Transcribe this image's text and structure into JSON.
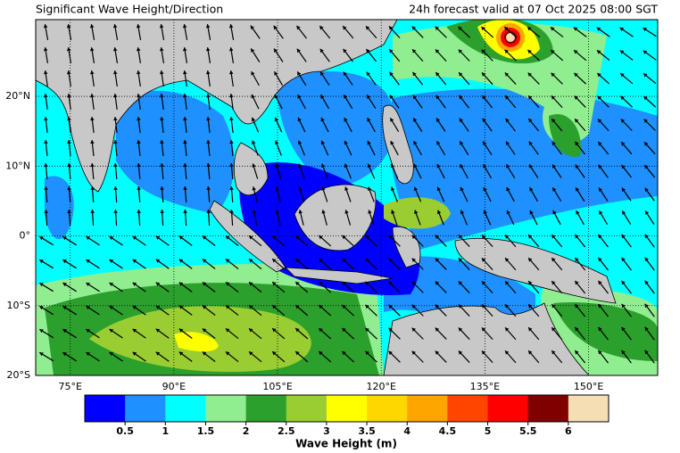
{
  "header": {
    "title": "Significant Wave Height/Direction",
    "valid": "24h forecast valid at 07 Oct 2025 08:00 SGT"
  },
  "map": {
    "xlim": [
      70,
      160
    ],
    "ylim": [
      -20,
      31
    ],
    "xticks": [
      {
        "value": 75,
        "label": "75°E"
      },
      {
        "value": 90,
        "label": "90°E"
      },
      {
        "value": 105,
        "label": "105°E"
      },
      {
        "value": 120,
        "label": "120°E"
      },
      {
        "value": 135,
        "label": "135°E"
      },
      {
        "value": 150,
        "label": "150°E"
      }
    ],
    "yticks": [
      {
        "value": -20,
        "label": "20°S"
      },
      {
        "value": -10,
        "label": "10°S"
      },
      {
        "value": 0,
        "label": "0°"
      },
      {
        "value": 10,
        "label": "10°N"
      },
      {
        "value": 20,
        "label": "20°N"
      }
    ],
    "grid": true
  },
  "colorbar": {
    "label": "Wave Height (m)",
    "lim": [
      0,
      6.5
    ],
    "ticks": [
      0.5,
      1,
      1.5,
      2,
      2.5,
      3,
      3.5,
      4,
      4.5,
      5,
      5.5,
      6
    ],
    "colors": [
      "#0000ff",
      "#1e90ff",
      "#00ffff",
      "#90ee90",
      "#2ca02c",
      "#9acd32",
      "#ffff00",
      "#ffd700",
      "#ffa500",
      "#ff4500",
      "#ff0000",
      "#800000",
      "#f5deb3"
    ]
  }
}
